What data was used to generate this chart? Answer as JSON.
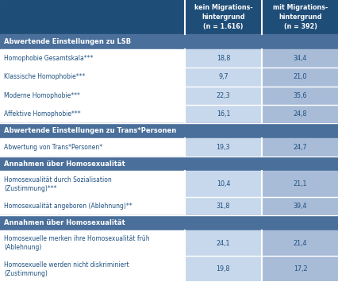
{
  "header_col1": "kein Migrations-\nhintergrund\n(n = 1.616)",
  "header_col2": "mit Migrations-\nhintergrund\n(n = 392)",
  "sections": [
    {
      "section_title": "Abwertende Einstellungen zu LSB",
      "rows": [
        {
          "label": "Homophobie Gesamtskala***",
          "val1": "18,8",
          "val2": "34,4",
          "two_line": false
        },
        {
          "label": "Klassische Homophobie***",
          "val1": "9,7",
          "val2": "21,0",
          "two_line": false
        },
        {
          "label": "Moderne Homophobie***",
          "val1": "22,3",
          "val2": "35,6",
          "two_line": false
        },
        {
          "label": "Affektive Homophobie***",
          "val1": "16,1",
          "val2": "24,8",
          "two_line": false
        }
      ]
    },
    {
      "section_title": "Abwertende Einstellungen zu Trans*Personen",
      "rows": [
        {
          "label": "Abwertung von Trans*Personen*",
          "val1": "19,3",
          "val2": "24,7",
          "two_line": false
        }
      ]
    },
    {
      "section_title": "Annahmen über Homosexualität",
      "rows": [
        {
          "label": "Homosexualität durch Sozialisation\n(Zustimmung)***",
          "val1": "10,4",
          "val2": "21,1",
          "two_line": true
        },
        {
          "label": "Homosexualität angeboren (Ablehnung)**",
          "val1": "31,8",
          "val2": "39,4",
          "two_line": false
        }
      ]
    },
    {
      "section_title": "Annahmen über Homosexualität",
      "rows": [
        {
          "label": "Homosexuelle merken ihre Homosexualität früh\n(Ablehnung)",
          "val1": "24,1",
          "val2": "21,4",
          "two_line": true
        },
        {
          "label": "Homosexuelle werden nicht diskriminiert\n(Zustimmung)",
          "val1": "19,8",
          "val2": "17,2",
          "two_line": true
        }
      ]
    }
  ],
  "header_bg": "#1e4d78",
  "section_bg": "#4a6f9a",
  "val_col1_bg": "#c8d8ec",
  "val_col2_bg": "#a8bcd8",
  "section_text_color": "#ffffff",
  "header_text_color": "#ffffff",
  "row_text_color": "#1e5080",
  "val_text_color": "#1e5080",
  "border_color": "#ffffff",
  "label_bg": "#ffffff",
  "fig_bg": "#f0f0f0"
}
